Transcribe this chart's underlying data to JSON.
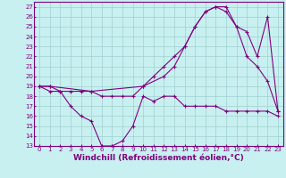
{
  "xlabel": "Windchill (Refroidissement éolien,°C)",
  "background_color": "#c8f0f0",
  "line_color": "#800080",
  "grid_color": "#a0d0d0",
  "xlim": [
    -0.5,
    23.5
  ],
  "ylim": [
    13,
    27.5
  ],
  "yticks": [
    13,
    14,
    15,
    16,
    17,
    18,
    19,
    20,
    21,
    22,
    23,
    24,
    25,
    26,
    27
  ],
  "xticks": [
    0,
    1,
    2,
    3,
    4,
    5,
    6,
    7,
    8,
    9,
    10,
    11,
    12,
    13,
    14,
    15,
    16,
    17,
    18,
    19,
    20,
    21,
    22,
    23
  ],
  "curve1_x": [
    0,
    1,
    2,
    3,
    4,
    5,
    6,
    7,
    8,
    9,
    10,
    11,
    12,
    13,
    14,
    15,
    16,
    17,
    18,
    19,
    20,
    21,
    22,
    23
  ],
  "curve1_y": [
    19,
    18.5,
    18.5,
    17,
    16,
    15.5,
    13,
    13,
    13.5,
    15,
    18,
    17.5,
    18,
    18,
    17,
    17,
    17,
    17,
    16.5,
    16.5,
    16.5,
    16.5,
    16.5,
    16
  ],
  "curve2_x": [
    0,
    1,
    2,
    3,
    4,
    5,
    6,
    7,
    8,
    9,
    10,
    11,
    12,
    13,
    14,
    15,
    16,
    17,
    18,
    19,
    20,
    21,
    22,
    23
  ],
  "curve2_y": [
    19,
    19,
    18.5,
    18.5,
    18.5,
    18.5,
    18,
    18,
    18,
    18,
    19,
    20,
    21,
    22,
    23,
    25,
    26.5,
    27,
    27,
    25,
    22,
    21,
    19.5,
    16.5
  ],
  "curve3_x": [
    0,
    1,
    5,
    10,
    12,
    13,
    14,
    15,
    16,
    17,
    18,
    19,
    20,
    21,
    22,
    23
  ],
  "curve3_y": [
    19,
    19,
    18.5,
    19,
    20,
    21,
    23,
    25,
    26.5,
    27,
    26.5,
    25,
    24.5,
    22,
    26,
    16.5
  ],
  "tick_fontsize": 5,
  "xlabel_fontsize": 6.5
}
